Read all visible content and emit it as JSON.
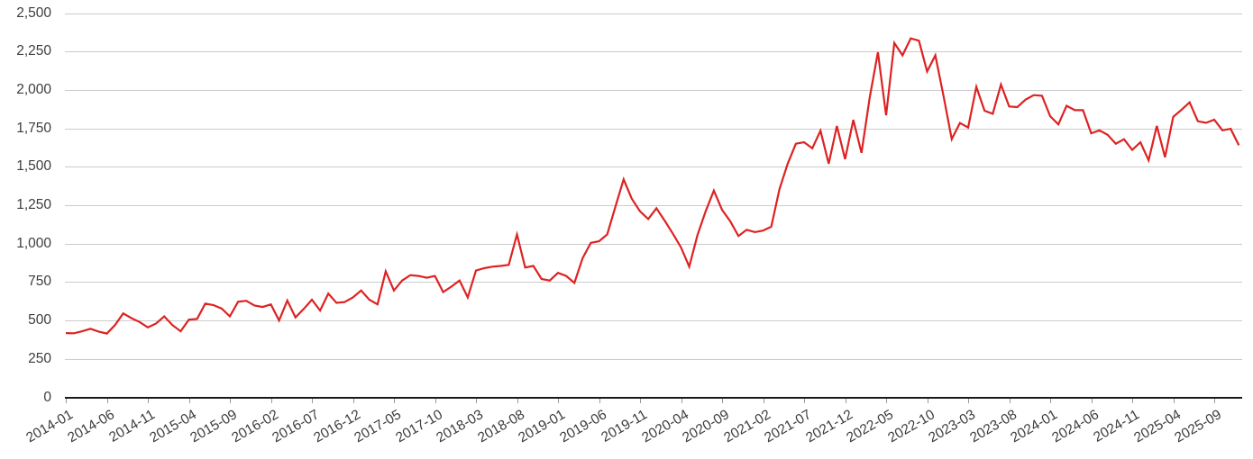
{
  "chart_data": {
    "type": "line",
    "title": "",
    "xlabel": "",
    "ylabel": "",
    "ylim": [
      0,
      2500
    ],
    "y_tick_values": [
      2500,
      2250,
      2000,
      1750,
      1500,
      1250,
      1000,
      750,
      500,
      250,
      0
    ],
    "y_tick_labels": [
      "2,500",
      "2,250",
      "2,000",
      "1,750",
      "1,500",
      "1,250",
      "1,000",
      "750",
      "500",
      "250",
      "0"
    ],
    "x_tick_every": 5,
    "x_tick_labels": [
      "2014-01",
      "2014-06",
      "2014-11",
      "2015-04",
      "2015-09",
      "2016-02",
      "2016-07",
      "2016-12",
      "2017-05",
      "2017-10",
      "2018-03",
      "2018-08",
      "2019-01",
      "2019-06",
      "2019-11",
      "2020-04",
      "2020-09",
      "2021-02",
      "2021-07",
      "2021-12",
      "2022-05",
      "2022-10",
      "2023-03",
      "2023-08",
      "2024-01",
      "2024-06",
      "2024-11",
      "2025-04",
      "2025-09"
    ],
    "x": [
      "2014-01",
      "2014-02",
      "2014-03",
      "2014-04",
      "2014-05",
      "2014-06",
      "2014-07",
      "2014-08",
      "2014-09",
      "2014-10",
      "2014-11",
      "2014-12",
      "2015-01",
      "2015-02",
      "2015-03",
      "2015-04",
      "2015-05",
      "2015-06",
      "2015-07",
      "2015-08",
      "2015-09",
      "2015-10",
      "2015-11",
      "2015-12",
      "2016-01",
      "2016-02",
      "2016-03",
      "2016-04",
      "2016-05",
      "2016-06",
      "2016-07",
      "2016-08",
      "2016-09",
      "2016-10",
      "2016-11",
      "2016-12",
      "2017-01",
      "2017-02",
      "2017-03",
      "2017-04",
      "2017-05",
      "2017-06",
      "2017-07",
      "2017-08",
      "2017-09",
      "2017-10",
      "2017-11",
      "2017-12",
      "2018-01",
      "2018-02",
      "2018-03",
      "2018-04",
      "2018-05",
      "2018-06",
      "2018-07",
      "2018-08",
      "2018-09",
      "2018-10",
      "2018-11",
      "2018-12",
      "2019-01",
      "2019-02",
      "2019-03",
      "2019-04",
      "2019-05",
      "2019-06",
      "2019-07",
      "2019-08",
      "2019-09",
      "2019-10",
      "2019-11",
      "2019-12",
      "2020-01",
      "2020-02",
      "2020-03",
      "2020-04",
      "2020-05",
      "2020-06",
      "2020-07",
      "2020-08",
      "2020-09",
      "2020-10",
      "2020-11",
      "2020-12",
      "2021-01",
      "2021-02",
      "2021-03",
      "2021-04",
      "2021-05",
      "2021-06",
      "2021-07",
      "2021-08",
      "2021-09",
      "2021-10",
      "2021-11",
      "2021-12",
      "2022-01",
      "2022-02",
      "2022-03",
      "2022-04",
      "2022-05",
      "2022-06",
      "2022-07",
      "2022-08",
      "2022-09",
      "2022-10",
      "2022-11",
      "2022-12",
      "2023-01",
      "2023-02",
      "2023-03",
      "2023-04",
      "2023-05",
      "2023-06",
      "2023-07",
      "2023-08",
      "2023-09",
      "2023-10",
      "2023-11",
      "2023-12",
      "2024-01",
      "2024-02",
      "2024-03",
      "2024-04",
      "2024-05",
      "2024-06",
      "2024-07",
      "2024-08",
      "2024-09",
      "2024-10",
      "2024-11",
      "2024-12",
      "2025-01",
      "2025-02",
      "2025-03",
      "2025-04",
      "2025-05",
      "2025-06",
      "2025-07",
      "2025-08",
      "2025-09",
      "2025-10",
      "2025-11",
      "2025-12"
    ],
    "values": [
      418,
      417,
      430,
      446,
      428,
      415,
      470,
      546,
      515,
      490,
      455,
      480,
      527,
      470,
      430,
      505,
      510,
      610,
      600,
      578,
      527,
      622,
      628,
      597,
      588,
      605,
      500,
      630,
      520,
      575,
      635,
      565,
      675,
      615,
      620,
      650,
      695,
      635,
      605,
      820,
      695,
      760,
      795,
      790,
      778,
      790,
      685,
      720,
      760,
      650,
      825,
      840,
      850,
      855,
      862,
      1060,
      845,
      855,
      770,
      760,
      810,
      790,
      745,
      905,
      1005,
      1015,
      1060,
      1240,
      1418,
      1292,
      1210,
      1160,
      1230,
      1150,
      1065,
      975,
      850,
      1055,
      1210,
      1345,
      1220,
      1145,
      1050,
      1090,
      1075,
      1085,
      1110,
      1355,
      1520,
      1650,
      1660,
      1620,
      1735,
      1520,
      1765,
      1550,
      1805,
      1590,
      1950,
      2245,
      1835,
      2305,
      2225,
      2335,
      2320,
      2120,
      2225,
      1960,
      1680,
      1785,
      1755,
      2020,
      1865,
      1845,
      2035,
      1892,
      1888,
      1937,
      1966,
      1962,
      1829,
      1776,
      1897,
      1868,
      1868,
      1718,
      1737,
      1708,
      1650,
      1679,
      1610,
      1659,
      1542,
      1766,
      1562,
      1825,
      1870,
      1919,
      1796,
      1786,
      1806,
      1737,
      1747,
      1640
    ],
    "series_color": "#dd2222",
    "grid_color": "#cbcbcb",
    "axis_color": "#1a1a1a",
    "tick_label_color": "#3d3d3d",
    "grid": "horizontal-only",
    "legend": "none"
  }
}
